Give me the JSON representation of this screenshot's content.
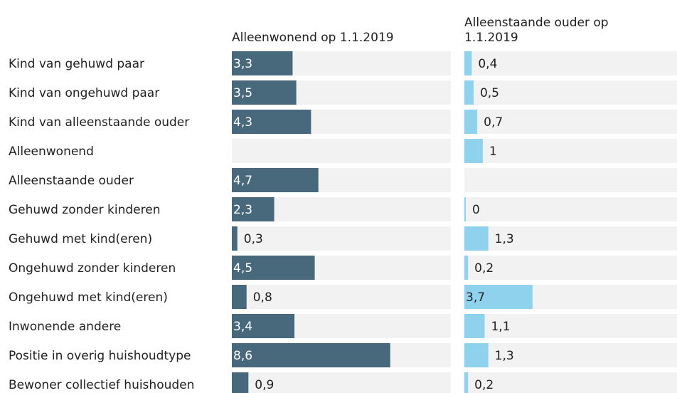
{
  "chart_data": {
    "type": "bar",
    "orientation": "horizontal",
    "categories": [
      "Kind van gehuwd paar",
      "Kind van ongehuwd paar",
      "Kind van alleenstaande ouder",
      "Alleenwonend",
      "Alleenstaande ouder",
      "Gehuwd zonder kinderen",
      "Gehuwd met kind(eren)",
      "Ongehuwd zonder kinderen",
      "Ongehuwd met kind(eren)",
      "Inwonende andere",
      "Positie in overig huishoudtype",
      "Bewoner collectief huishouden"
    ],
    "series": [
      {
        "name": "Alleenwonend op 1.1.2019",
        "color": "#48687b",
        "values": [
          3.3,
          3.5,
          4.3,
          null,
          4.7,
          2.3,
          0.3,
          4.5,
          0.8,
          3.4,
          8.6,
          0.9
        ],
        "value_labels": [
          "3,3",
          "3,5",
          "4,3",
          null,
          "4,7",
          "2,3",
          "0,3",
          "4,5",
          "0,8",
          "3,4",
          "8,6",
          "0,9"
        ]
      },
      {
        "name": "Alleenstaande ouder op 1.1.2019",
        "color": "#8ed2ee",
        "values": [
          0.4,
          0.5,
          0.7,
          1,
          null,
          0,
          1.3,
          0.2,
          3.7,
          1.1,
          1.3,
          0.2
        ],
        "value_labels": [
          "0,4",
          "0,5",
          "0,7",
          "1",
          null,
          "0",
          "1,3",
          "0,2",
          "3,7",
          "1,1",
          "1,3",
          "0,2"
        ]
      }
    ],
    "xlim": [
      0,
      12
    ]
  }
}
